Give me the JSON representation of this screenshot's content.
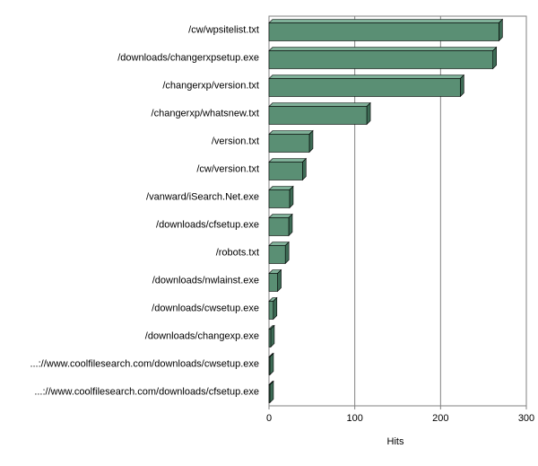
{
  "chart_data": {
    "type": "bar3d_horizontal",
    "categories": [
      "/cw/wpsitelist.txt",
      "/downloads/changerxpsetup.exe",
      "/changerxp/version.txt",
      "/changerxp/whatsnew.txt",
      "/version.txt",
      "/cw/version.txt",
      "/vanward/iSearch.Net.exe",
      "/downloads/cfsetup.exe",
      "/robots.txt",
      "/downloads/nwlainst.exe",
      "/downloads/cwsetup.exe",
      "/downloads/changexp.exe",
      "...://www.coolfilesearch.com/downloads/cwsetup.exe",
      "...://www.coolfilesearch.com/downloads/cfsetup.exe"
    ],
    "values": [
      268,
      261,
      223,
      114,
      47,
      39,
      24,
      23,
      19,
      10,
      5,
      2,
      1,
      1
    ],
    "color": "#5a8f74",
    "xlabel": "Hits",
    "xlim": [
      0,
      300
    ],
    "xticks": [
      0,
      100,
      200,
      300
    ],
    "grid": true
  }
}
